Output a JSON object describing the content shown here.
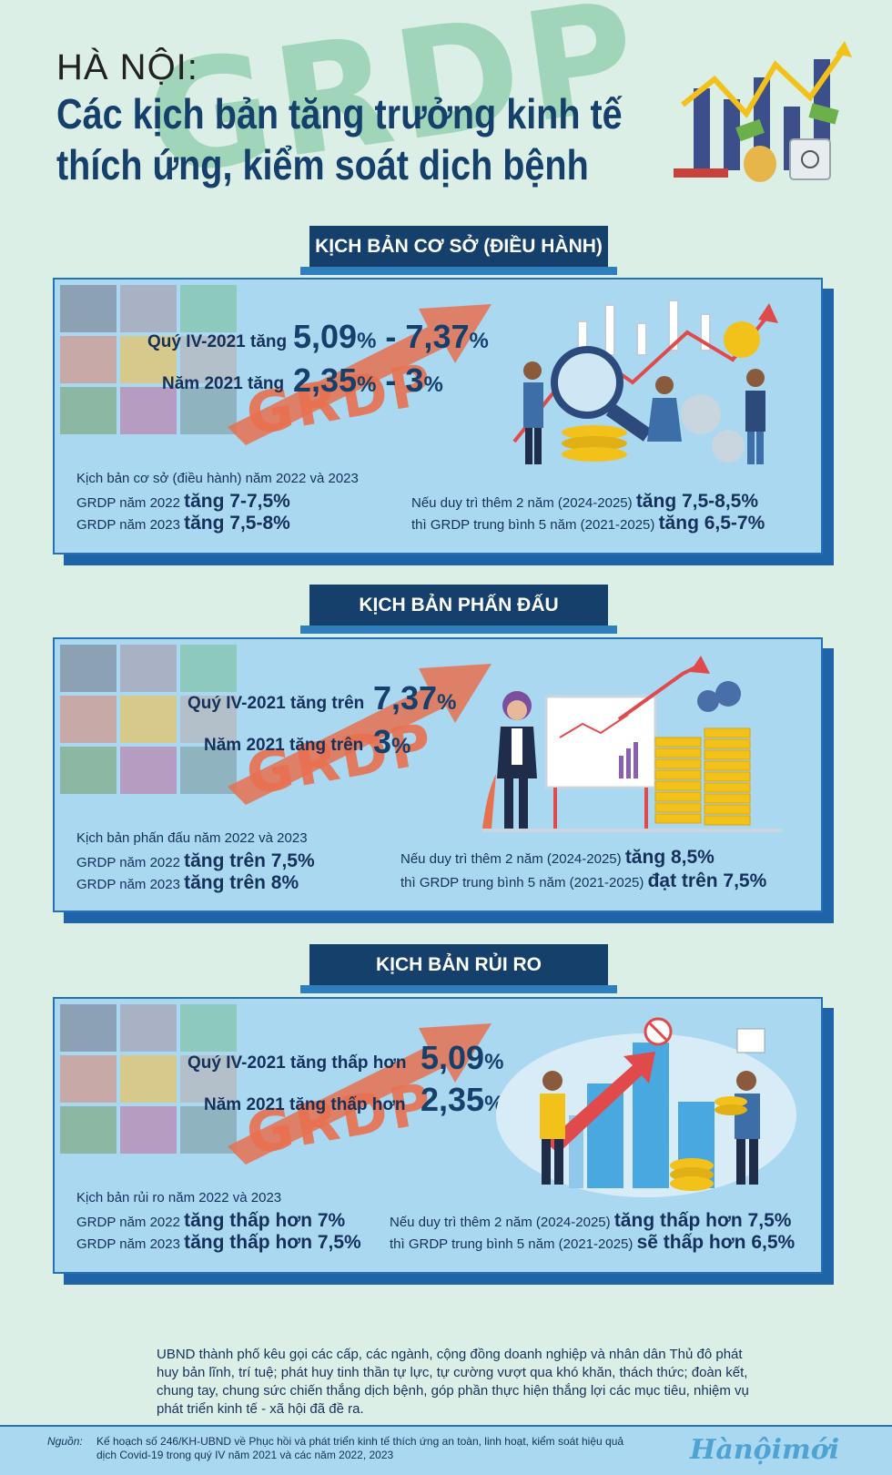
{
  "header": {
    "city": "HÀ NỘI:",
    "title_line1": "Các kịch bản tăng trưởng kinh tế",
    "title_line2": "thích ứng, kiểm soát dịch bệnh",
    "watermark": "GRDP"
  },
  "scenarios": [
    {
      "banner": "KỊCH BẢN CƠ SỞ (ĐIỀU HÀNH)",
      "q4_label": "Quý IV-2021 tăng",
      "q4_value": "5,09% - 7,37%",
      "year_label": "Năm 2021 tăng",
      "year_value": "2,35% - 3%",
      "watermark": "GRDP",
      "intro": "Kịch bản cơ sở (điều hành) năm 2022 và 2023",
      "y2022_label": "GRDP năm 2022",
      "y2022_value": "tăng 7-7,5%",
      "y2023_label": "GRDP năm 2023",
      "y2023_value": "tăng 7,5-8%",
      "maintain_label": "Nếu duy trì thêm 2 năm (2024-2025)",
      "maintain_value": "tăng 7,5-8,5%",
      "avg_label": "thì GRDP trung bình 5 năm (2021-2025)",
      "avg_value": "tăng 6,5-7%"
    },
    {
      "banner": "KỊCH BẢN PHẤN ĐẤU",
      "q4_label": "Quý IV-2021 tăng trên",
      "q4_value": "7,37%",
      "year_label": "Năm 2021 tăng trên",
      "year_value": "3%",
      "watermark": "GRDP",
      "intro": "Kịch bản phấn đấu năm 2022 và 2023",
      "y2022_label": "GRDP năm 2022",
      "y2022_value": "tăng trên 7,5%",
      "y2023_label": "GRDP năm 2023",
      "y2023_value": "tăng trên 8%",
      "maintain_label": "Nếu duy trì thêm 2 năm (2024-2025)",
      "maintain_value": "tăng 8,5%",
      "avg_label": "thì GRDP trung bình 5 năm (2021-2025)",
      "avg_value": "đạt trên 7,5%"
    },
    {
      "banner": "KỊCH BẢN RỦI RO",
      "q4_label": "Quý IV-2021 tăng thấp hơn",
      "q4_value": "5,09%",
      "year_label": "Năm 2021 tăng thấp hơn",
      "year_value": "2,35%",
      "watermark": "GRDP",
      "intro": "Kịch bản rủi ro năm 2022 và 2023",
      "y2022_label": "GRDP năm 2022",
      "y2022_value": "tăng thấp hơn 7%",
      "y2023_label": "GRDP năm 2023",
      "y2023_value": "tăng thấp hơn 7,5%",
      "maintain_label": "Nếu duy trì thêm 2 năm (2024-2025)",
      "maintain_value": "tăng thấp hơn 7,5%",
      "avg_label": "thì GRDP trung bình 5 năm (2021-2025)",
      "avg_value": "sẽ thấp hơn 6,5%"
    }
  ],
  "closing": "UBND thành phố kêu gọi các cấp, các ngành, cộng đồng doanh nghiệp và nhân dân Thủ đô phát huy bản lĩnh, trí tuệ; phát huy tinh thần tự lực, tự cường vượt qua khó khăn, thách thức; đoàn kết, chung tay, chung sức chiến thắng dịch bệnh, góp phần thực hiện thắng lợi các mục tiêu, nhiệm vụ phát triển kinh tế - xã hội đã đề ra.",
  "footer": {
    "source_label": "Nguồn:",
    "source_text": "Kế hoạch số 246/KH-UBND về Phục hồi và phát triển kinh tế thích ứng an toàn, linh hoạt, kiểm soát hiệu quả dịch Covid-19 trong quý IV năm 2021 và các năm 2022, 2023",
    "logo": "Hànộimới"
  },
  "colors": {
    "background": "#dcefe6",
    "navy": "#15406b",
    "panel": "#a9d8f0",
    "accent_orange": "#e8704f",
    "watermark_green": "#93cfae"
  }
}
